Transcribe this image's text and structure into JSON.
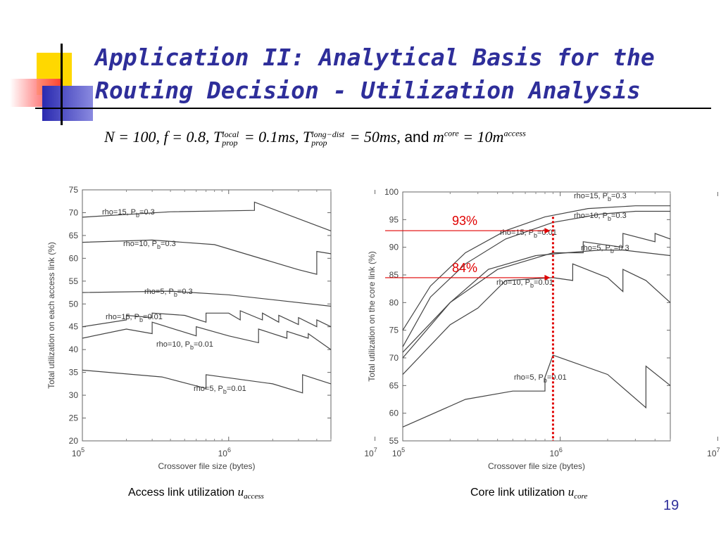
{
  "slide": {
    "title_line1": "Application II: Analytical Basis for the",
    "title_line2": "Routing Decision - Utilization Analysis",
    "page_number": "19",
    "formula": {
      "n": "N = 100, ",
      "f": "f  = 0.8, ",
      "t1_sup": "local",
      "t1_sub": "prop",
      "t1_val": " = 0.1ms, ",
      "t2_sup": "long−dist",
      "t2_sub": "prop",
      "t2_val": " = 50ms, ",
      "and": "and",
      "m1_sup": "core",
      "m2_text": " = 10m",
      "m2_sup": "access"
    },
    "caption_left": "Access link utilization",
    "caption_left_sub": "access",
    "caption_right": "Core link utilization",
    "caption_right_sub": "core",
    "annotation_93": "93%",
    "annotation_84": "84%"
  },
  "chart_data": [
    {
      "type": "line",
      "xscale": "log",
      "xlim": [
        100000,
        5000000
      ],
      "ylim": [
        20,
        75
      ],
      "yticks": [
        20,
        25,
        30,
        35,
        40,
        45,
        50,
        55,
        60,
        65,
        70,
        75
      ],
      "xticks": [
        100000,
        1000000,
        10000000
      ],
      "xlabel": "Crossover file size (bytes)",
      "ylabel": "Total utilization on each access link (%)",
      "grid": false,
      "series": [
        {
          "name": "rho=15, Pb=0.3",
          "points": [
            [
              100000,
              69
            ],
            [
              400000,
              70.2
            ],
            [
              1500000,
              70.5
            ],
            [
              1500000,
              72.3
            ],
            [
              5000000,
              66
            ]
          ]
        },
        {
          "name": "rho=10, Pb=0.3",
          "points": [
            [
              100000,
              63.5
            ],
            [
              300000,
              64
            ],
            [
              800000,
              63
            ],
            [
              3000000,
              57.5
            ],
            [
              4000000,
              56.5
            ],
            [
              4000000,
              61.5
            ],
            [
              5000000,
              61
            ]
          ]
        },
        {
          "name": "rho=5, Pb=0.3",
          "points": [
            [
              100000,
              52.5
            ],
            [
              400000,
              52.8
            ],
            [
              1000000,
              52
            ],
            [
              5000000,
              49.5
            ]
          ]
        },
        {
          "name": "rho=15, Pb=0.01",
          "points": [
            [
              100000,
              45
            ],
            [
              200000,
              46.5
            ],
            [
              200000,
              47.5
            ],
            [
              300000,
              47
            ],
            [
              300000,
              48
            ],
            [
              500000,
              47.5
            ],
            [
              700000,
              46
            ],
            [
              700000,
              48
            ],
            [
              1000000,
              48
            ],
            [
              1200000,
              46.5
            ],
            [
              1200000,
              48.5
            ],
            [
              1700000,
              46.5
            ],
            [
              1700000,
              48
            ],
            [
              2200000,
              46
            ],
            [
              2200000,
              47.5
            ],
            [
              3000000,
              45.5
            ],
            [
              3000000,
              47
            ],
            [
              4000000,
              45
            ],
            [
              4000000,
              46.5
            ],
            [
              5000000,
              45
            ]
          ]
        },
        {
          "name": "rho=10, Pb=0.01",
          "points": [
            [
              100000,
              42.5
            ],
            [
              200000,
              44.5
            ],
            [
              300000,
              43.5
            ],
            [
              300000,
              46
            ],
            [
              600000,
              43
            ],
            [
              600000,
              45
            ],
            [
              1000000,
              43
            ],
            [
              1600000,
              41.5
            ],
            [
              1600000,
              44.5
            ],
            [
              2500000,
              42.5
            ],
            [
              2500000,
              44
            ],
            [
              3500000,
              42.5
            ],
            [
              3500000,
              43.5
            ],
            [
              5000000,
              40
            ]
          ]
        },
        {
          "name": "rho=5, Pb=0.01",
          "points": [
            [
              100000,
              35.5
            ],
            [
              350000,
              34
            ],
            [
              700000,
              31.5
            ],
            [
              700000,
              34.5
            ],
            [
              2000000,
              32.5
            ],
            [
              3200000,
              30.5
            ],
            [
              3200000,
              34.5
            ],
            [
              5000000,
              32.5
            ]
          ]
        }
      ]
    },
    {
      "type": "line",
      "xscale": "log",
      "xlim": [
        100000,
        5000000
      ],
      "ylim": [
        55,
        100
      ],
      "yticks": [
        55,
        60,
        65,
        70,
        75,
        80,
        85,
        90,
        95,
        100
      ],
      "xticks": [
        100000,
        1000000,
        10000000
      ],
      "xlabel": "Crossover file size (bytes)",
      "ylabel": "Total utilization on the core link (%)",
      "grid": false,
      "crossover_marker_x": 900000,
      "series": [
        {
          "name": "rho=15, Pb=0.3",
          "points": [
            [
              100000,
              75
            ],
            [
              150000,
              83
            ],
            [
              250000,
              89
            ],
            [
              450000,
              93
            ],
            [
              800000,
              95.5
            ],
            [
              1500000,
              97
            ],
            [
              3000000,
              97.5
            ],
            [
              5000000,
              97.5
            ]
          ]
        },
        {
          "name": "rho=10, Pb=0.3",
          "points": [
            [
              100000,
              72
            ],
            [
              150000,
              81
            ],
            [
              250000,
              87
            ],
            [
              450000,
              91.5
            ],
            [
              900000,
              94.5
            ],
            [
              1800000,
              96
            ],
            [
              3000000,
              96.5
            ],
            [
              5000000,
              96.5
            ]
          ]
        },
        {
          "name": "rho=15, Pb=0.01",
          "points": [
            [
              100000,
              71
            ],
            [
              200000,
              80
            ],
            [
              400000,
              86
            ],
            [
              900000,
              89
            ],
            [
              1400000,
              89
            ],
            [
              1400000,
              91
            ],
            [
              2500000,
              90
            ],
            [
              2500000,
              92.5
            ],
            [
              4000000,
              91
            ],
            [
              4000000,
              92.5
            ],
            [
              5000000,
              91.5
            ]
          ]
        },
        {
          "name": "rho=5, Pb=0.3",
          "points": [
            [
              100000,
              70
            ],
            [
              200000,
              80
            ],
            [
              350000,
              86
            ],
            [
              700000,
              88.5
            ],
            [
              1100000,
              89
            ],
            [
              1800000,
              89.5
            ],
            [
              2500000,
              89.5
            ],
            [
              3500000,
              89
            ],
            [
              5000000,
              88.5
            ]
          ]
        },
        {
          "name": "rho=10, Pb=0.01",
          "points": [
            [
              100000,
              67
            ],
            [
              200000,
              76
            ],
            [
              300000,
              79
            ],
            [
              450000,
              84
            ],
            [
              900000,
              84.5
            ],
            [
              1200000,
              84
            ],
            [
              1200000,
              87
            ],
            [
              2000000,
              84.5
            ],
            [
              2500000,
              82
            ],
            [
              2500000,
              86
            ],
            [
              3500000,
              84
            ],
            [
              5000000,
              80
            ]
          ]
        },
        {
          "name": "rho=5, Pb=0.01",
          "points": [
            [
              100000,
              57.5
            ],
            [
              250000,
              62.5
            ],
            [
              500000,
              64
            ],
            [
              800000,
              64
            ],
            [
              800000,
              66.5
            ],
            [
              900000,
              70.5
            ],
            [
              2000000,
              67
            ],
            [
              3500000,
              61
            ],
            [
              3500000,
              68.5
            ],
            [
              5000000,
              65
            ]
          ]
        }
      ]
    }
  ]
}
